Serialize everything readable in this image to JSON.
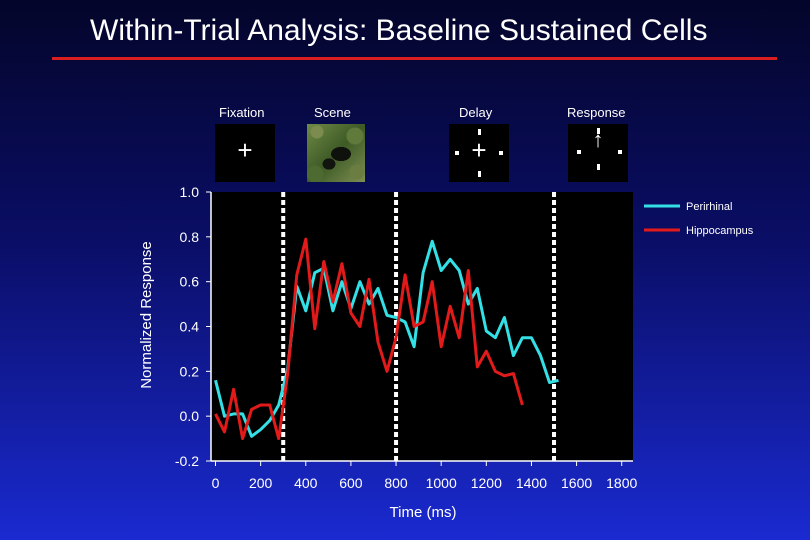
{
  "slide": {
    "title": "Within-Trial Analysis: Baseline Sustained Cells",
    "title_color": "#ffffff",
    "rule_color": "#d81e1e"
  },
  "phases": [
    {
      "label": "Fixation",
      "stimulus": "fixation-cross",
      "symbol": "+"
    },
    {
      "label": "Scene",
      "stimulus": "gorilla-scene-image"
    },
    {
      "label": "Delay",
      "stimulus": "cross-with-dots",
      "symbol": "+"
    },
    {
      "label": "Response",
      "stimulus": "arrow-with-dots",
      "symbol": "↑"
    }
  ],
  "chart_data": {
    "type": "line",
    "xlabel": "Time (ms)",
    "ylabel": "Normalized Response",
    "xlim": [
      -20,
      1850
    ],
    "ylim": [
      -0.2,
      1.0
    ],
    "x_ticks": [
      0,
      200,
      400,
      600,
      800,
      1000,
      1200,
      1400,
      1600,
      1800
    ],
    "y_ticks": [
      {
        "value": 1.0,
        "label": "1.0"
      },
      {
        "value": 0.8,
        "label": "0.8"
      },
      {
        "value": 0.6,
        "label": "0.6"
      },
      {
        "value": 0.4,
        "label": "0.4"
      },
      {
        "value": 0.2,
        "label": "0.2"
      },
      {
        "value": 0.0,
        "label": "0.0"
      },
      {
        "value": -0.2,
        "label": "-0.2"
      }
    ],
    "event_lines": [
      300,
      800,
      1500
    ],
    "legend_position": "top-right",
    "background": "#000000",
    "series": [
      {
        "name": "Perirhinal",
        "color": "#33e0e6",
        "x": [
          0,
          40,
          80,
          120,
          160,
          200,
          240,
          280,
          320,
          360,
          400,
          440,
          480,
          520,
          560,
          600,
          640,
          680,
          720,
          760,
          800,
          840,
          880,
          920,
          960,
          1000,
          1040,
          1080,
          1120,
          1160,
          1200,
          1240,
          1280,
          1320,
          1360,
          1400,
          1440,
          1480,
          1520,
          1560,
          1600,
          1640,
          1680,
          1720,
          1760,
          1800
        ],
        "y": [
          0.16,
          0.0,
          0.01,
          0.01,
          -0.09,
          -0.06,
          -0.02,
          0.05,
          0.21,
          0.58,
          0.47,
          0.64,
          0.66,
          0.47,
          0.6,
          0.48,
          0.6,
          0.5,
          0.57,
          0.45,
          0.44,
          0.42,
          0.31,
          0.64,
          0.78,
          0.65,
          0.7,
          0.65,
          0.5,
          0.57,
          0.38,
          0.35,
          0.44,
          0.27,
          0.35,
          0.35,
          0.27,
          0.15,
          0.16,
          null,
          null,
          null,
          null,
          null,
          null,
          null
        ]
      },
      {
        "name": "Hippocampus",
        "color": "#e21a1a",
        "x": [
          0,
          40,
          80,
          120,
          160,
          200,
          240,
          280,
          320,
          360,
          400,
          440,
          480,
          520,
          560,
          600,
          640,
          680,
          720,
          760,
          800,
          840,
          880,
          920,
          960,
          1000,
          1040,
          1080,
          1120,
          1160,
          1200,
          1240,
          1280,
          1320,
          1360,
          1400,
          1440,
          1480,
          1520,
          1560,
          1600,
          1640,
          1680,
          1720,
          1760,
          1800
        ],
        "y": [
          0.01,
          -0.07,
          0.12,
          -0.1,
          0.03,
          0.05,
          0.05,
          -0.1,
          0.19,
          0.63,
          0.79,
          0.39,
          0.69,
          0.51,
          0.68,
          0.46,
          0.4,
          0.61,
          0.33,
          0.2,
          0.35,
          0.63,
          0.4,
          0.42,
          0.6,
          0.31,
          0.49,
          0.35,
          0.65,
          0.22,
          0.29,
          0.2,
          0.18,
          0.19,
          0.05,
          null,
          null,
          null,
          null,
          null,
          null,
          null,
          null,
          null,
          null,
          null
        ]
      }
    ]
  }
}
